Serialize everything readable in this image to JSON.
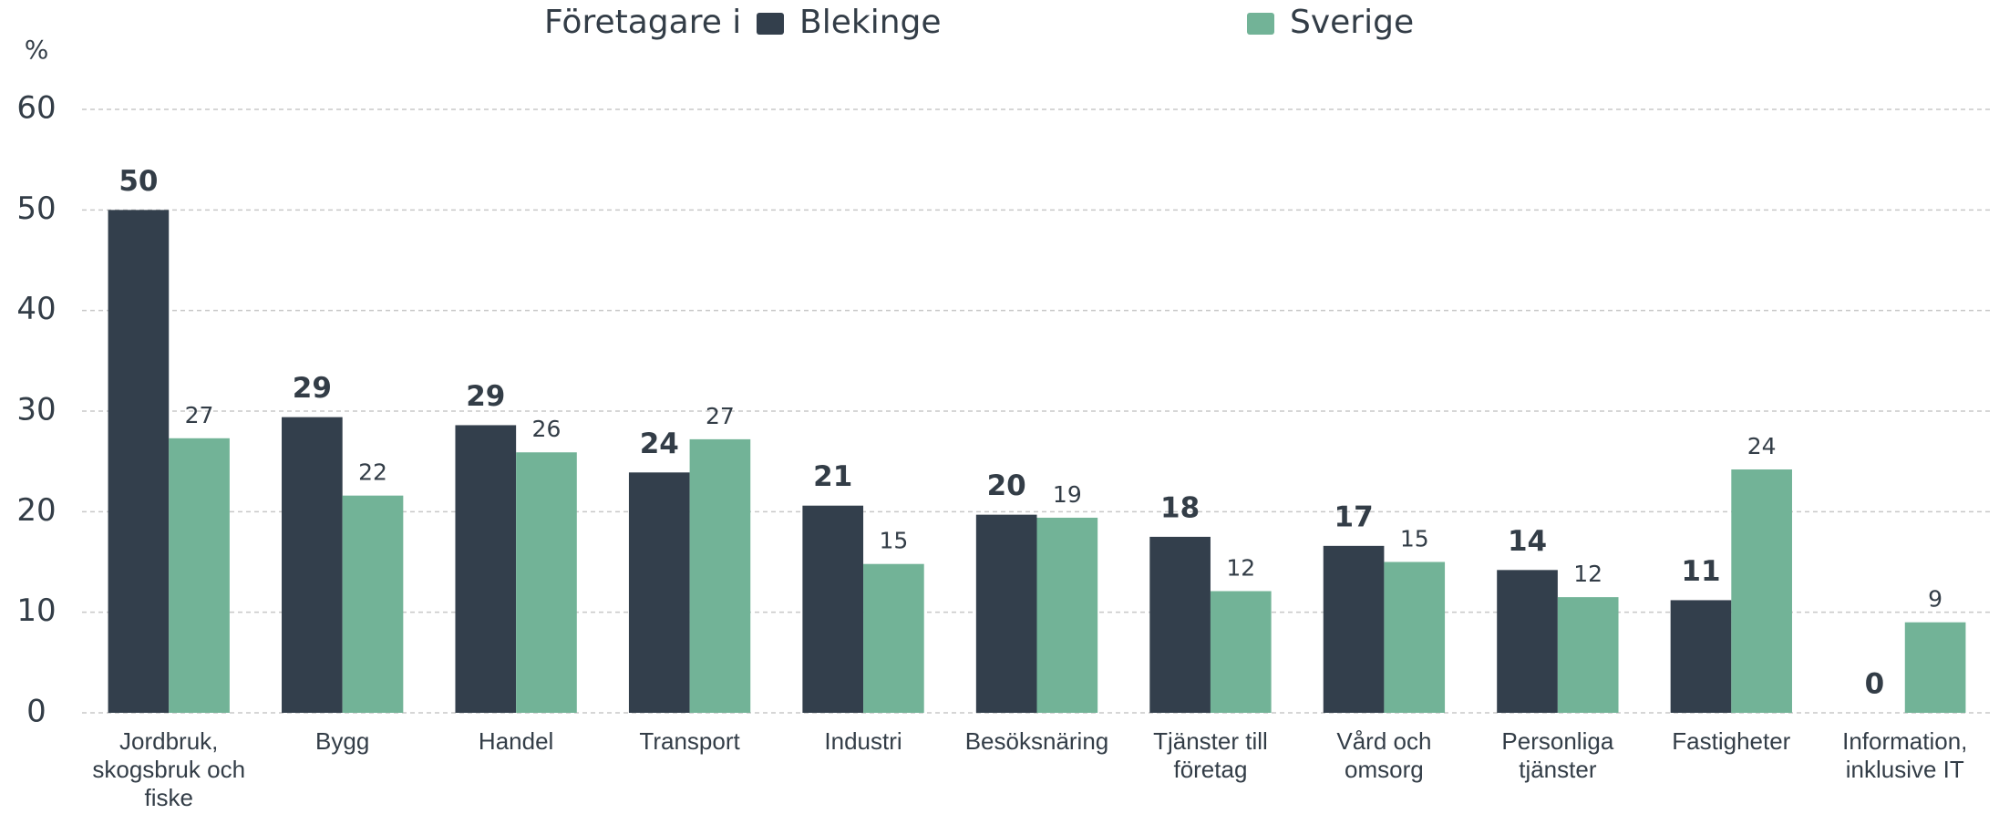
{
  "chart_data": {
    "type": "bar",
    "legend_title": "Företagare i",
    "ylabel": "%",
    "categories": [
      "Jordbruk, skogsbruk och fiske",
      "Bygg",
      "Handel",
      "Transport",
      "Industri",
      "Besöksnäring",
      "Tjänster till företag",
      "Vård och omsorg",
      "Personliga tjänster",
      "Fastigheter",
      "Information, inklusive IT"
    ],
    "series": [
      {
        "name": "Blekinge",
        "color": "#333f4c",
        "values": [
          50,
          29.4,
          28.6,
          23.9,
          20.6,
          19.7,
          17.5,
          16.6,
          14.2,
          11.2,
          0
        ],
        "value_labels": [
          "50",
          "29",
          "29",
          "24",
          "21",
          "20",
          "18",
          "17",
          "14",
          "11",
          "0"
        ]
      },
      {
        "name": "Sverige",
        "color": "#72b397",
        "values": [
          27.3,
          21.6,
          25.9,
          27.2,
          14.8,
          19.4,
          12.1,
          15.0,
          11.5,
          24.2,
          9.0
        ],
        "value_labels": [
          "27",
          "22",
          "26",
          "27",
          "15",
          "19",
          "12",
          "15",
          "12",
          "24",
          "9"
        ]
      }
    ],
    "ylim": [
      0,
      60
    ],
    "yticks": [
      0,
      10,
      20,
      30,
      40,
      50,
      60
    ],
    "grid": true
  }
}
